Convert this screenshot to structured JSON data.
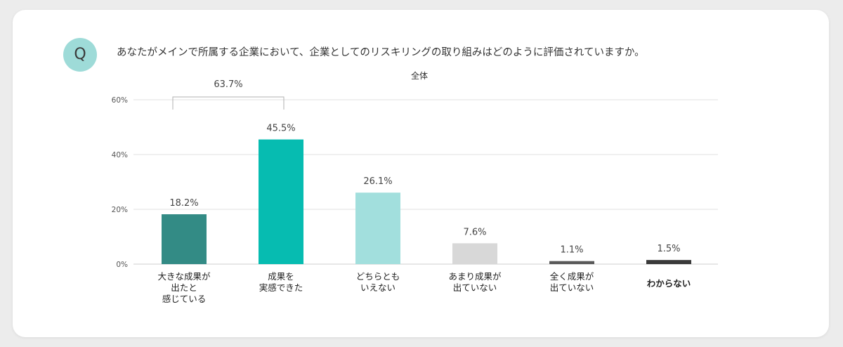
{
  "question": {
    "badge": "Q",
    "text": "あなたがメインで所属する企業において、企業としてのリスキリングの取り組みはどのように評価されていますか。"
  },
  "colors": {
    "badge_bg": "#9edbd8",
    "gridline": "#e0e0e0",
    "bracket": "#b0b0b0"
  },
  "chart_data": {
    "type": "bar",
    "title": "全体",
    "xlabel": "",
    "ylabel": "",
    "ylim": [
      0,
      60
    ],
    "yticks": [
      0,
      20,
      40,
      60
    ],
    "ytick_labels": [
      "0%",
      "20%",
      "40%",
      "60%"
    ],
    "grid": true,
    "categories": [
      [
        "大きな成果が",
        "出たと",
        "感じている"
      ],
      [
        "成果を",
        "実感できた"
      ],
      [
        "どちらとも",
        "いえない"
      ],
      [
        "あまり成果が",
        "出ていない"
      ],
      [
        "全く成果が",
        "出ていない"
      ],
      [
        "わからない"
      ]
    ],
    "values": [
      18.2,
      45.5,
      26.1,
      7.6,
      1.1,
      1.5
    ],
    "value_labels": [
      "18.2%",
      "45.5%",
      "26.1%",
      "7.6%",
      "1.1%",
      "1.5%"
    ],
    "bar_colors": [
      "#338b85",
      "#06bcb1",
      "#a2dfdd",
      "#d8d8d8",
      "#595959",
      "#3a3a3a"
    ],
    "bold_category": 5,
    "annotations": [
      {
        "type": "bracket",
        "from": 0,
        "to": 1,
        "label": "63.7%"
      }
    ]
  }
}
